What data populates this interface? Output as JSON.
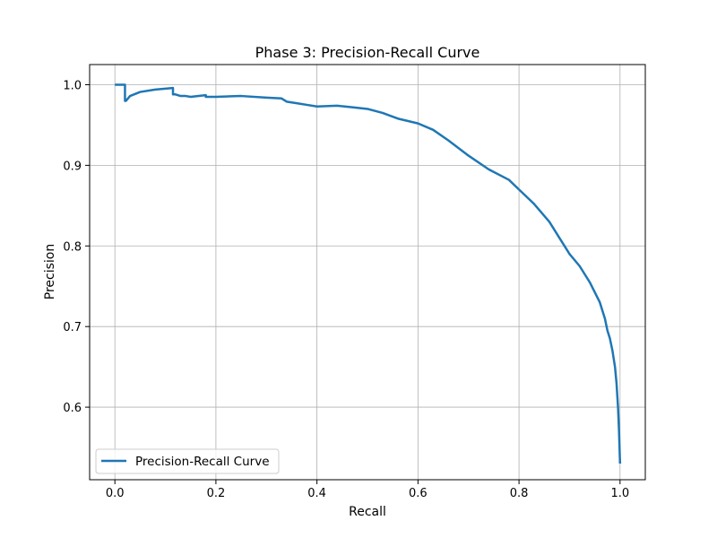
{
  "chart_data": {
    "type": "line",
    "title": "Phase 3: Precision-Recall Curve",
    "xlabel": "Recall",
    "ylabel": "Precision",
    "xlim": [
      -0.05,
      1.05
    ],
    "ylim": [
      0.51,
      1.025
    ],
    "xticks": [
      0.0,
      0.2,
      0.4,
      0.6,
      0.8,
      1.0
    ],
    "xtick_labels": [
      "0.0",
      "0.2",
      "0.4",
      "0.6",
      "0.8",
      "1.0"
    ],
    "yticks": [
      0.6,
      0.7,
      0.8,
      0.9,
      1.0
    ],
    "ytick_labels": [
      "0.6",
      "0.7",
      "0.8",
      "0.9",
      "1.0"
    ],
    "grid": true,
    "legend_position": "lower-left",
    "color": "#1f77b4",
    "series": [
      {
        "name": "Precision-Recall Curve",
        "x": [
          0.0,
          0.02,
          0.02,
          0.022,
          0.03,
          0.05,
          0.08,
          0.115,
          0.115,
          0.12,
          0.13,
          0.14,
          0.15,
          0.18,
          0.18,
          0.2,
          0.25,
          0.3,
          0.33,
          0.34,
          0.36,
          0.38,
          0.4,
          0.44,
          0.47,
          0.5,
          0.53,
          0.56,
          0.6,
          0.63,
          0.66,
          0.7,
          0.74,
          0.78,
          0.8,
          0.83,
          0.86,
          0.88,
          0.9,
          0.92,
          0.94,
          0.96,
          0.97,
          0.975,
          0.98,
          0.985,
          0.99,
          0.993,
          0.996,
          0.998,
          1.0
        ],
        "y": [
          1.0,
          1.0,
          0.98,
          0.98,
          0.986,
          0.991,
          0.994,
          0.996,
          0.988,
          0.988,
          0.986,
          0.986,
          0.985,
          0.987,
          0.985,
          0.985,
          0.986,
          0.984,
          0.983,
          0.979,
          0.977,
          0.975,
          0.973,
          0.974,
          0.972,
          0.97,
          0.965,
          0.958,
          0.952,
          0.944,
          0.931,
          0.912,
          0.895,
          0.882,
          0.87,
          0.852,
          0.83,
          0.81,
          0.79,
          0.775,
          0.755,
          0.73,
          0.71,
          0.695,
          0.685,
          0.67,
          0.65,
          0.63,
          0.6,
          0.57,
          0.53
        ]
      }
    ]
  }
}
